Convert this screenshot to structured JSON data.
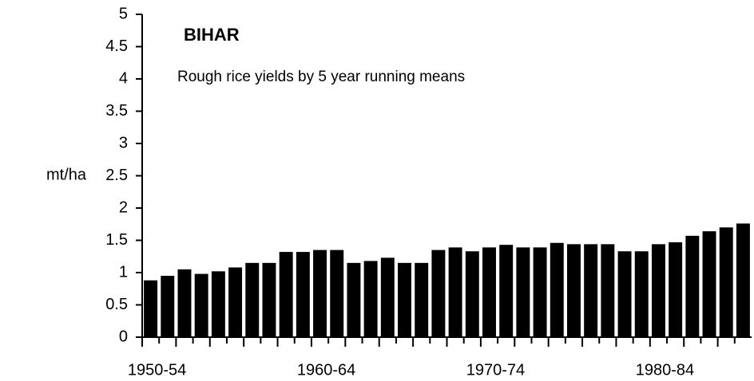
{
  "chart_data": {
    "type": "bar",
    "title": "BIHAR",
    "subtitle": "Rough rice yields by 5 year running means",
    "y_label": "mt/ha",
    "categories": [
      "1950-54",
      null,
      null,
      null,
      null,
      null,
      null,
      null,
      null,
      null,
      "1960-64",
      null,
      null,
      null,
      null,
      null,
      null,
      null,
      null,
      null,
      "1970-74",
      null,
      null,
      null,
      null,
      null,
      null,
      null,
      null,
      null,
      "1980-84",
      null,
      null,
      null,
      null,
      null
    ],
    "values": [
      0.88,
      0.95,
      1.05,
      0.98,
      1.02,
      1.08,
      1.15,
      1.15,
      1.32,
      1.32,
      1.35,
      1.35,
      1.15,
      1.18,
      1.23,
      1.15,
      1.15,
      1.35,
      1.39,
      1.33,
      1.39,
      1.43,
      1.39,
      1.39,
      1.46,
      1.44,
      1.44,
      1.44,
      1.33,
      1.33,
      1.44,
      1.47,
      1.57,
      1.64,
      1.7,
      1.76
    ],
    "color": "#000000",
    "ylim": [
      0,
      5
    ],
    "yticks": [
      0,
      0.5,
      1,
      1.5,
      2,
      2.5,
      3,
      3.5,
      4,
      4.5,
      5
    ],
    "grid": false
  }
}
